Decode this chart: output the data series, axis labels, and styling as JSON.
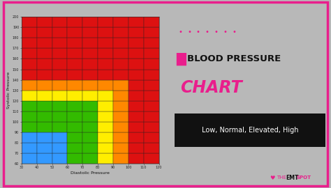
{
  "title_line1": "BLOOD PRESSURE",
  "title_line2": "CHART",
  "subtitle": "Low, Normal, Elevated, High",
  "xlabel": "Diastolic Pressure",
  "ylabel": "Systolic Pressure",
  "diastolic_ticks": [
    30,
    40,
    50,
    60,
    70,
    80,
    90,
    100,
    110,
    120
  ],
  "systolic_ticks": [
    60,
    70,
    80,
    90,
    100,
    110,
    120,
    130,
    140,
    150,
    160,
    170,
    180,
    190,
    200
  ],
  "bg_color": "#b8b8b8",
  "border_color": "#e91e8c",
  "dots_color": "#e91e8c",
  "title1_color": "#111111",
  "title2_color": "#e91e8c",
  "subtitle_bg": "#111111",
  "subtitle_color": "#ffffff",
  "logo_color": "#e91e8c",
  "pink_block_color": "#e91e8c",
  "colors": {
    "blue": "#3399ff",
    "green": "#33bb00",
    "yellow": "#ffee00",
    "orange": "#ff8800",
    "red": "#dd1111"
  }
}
